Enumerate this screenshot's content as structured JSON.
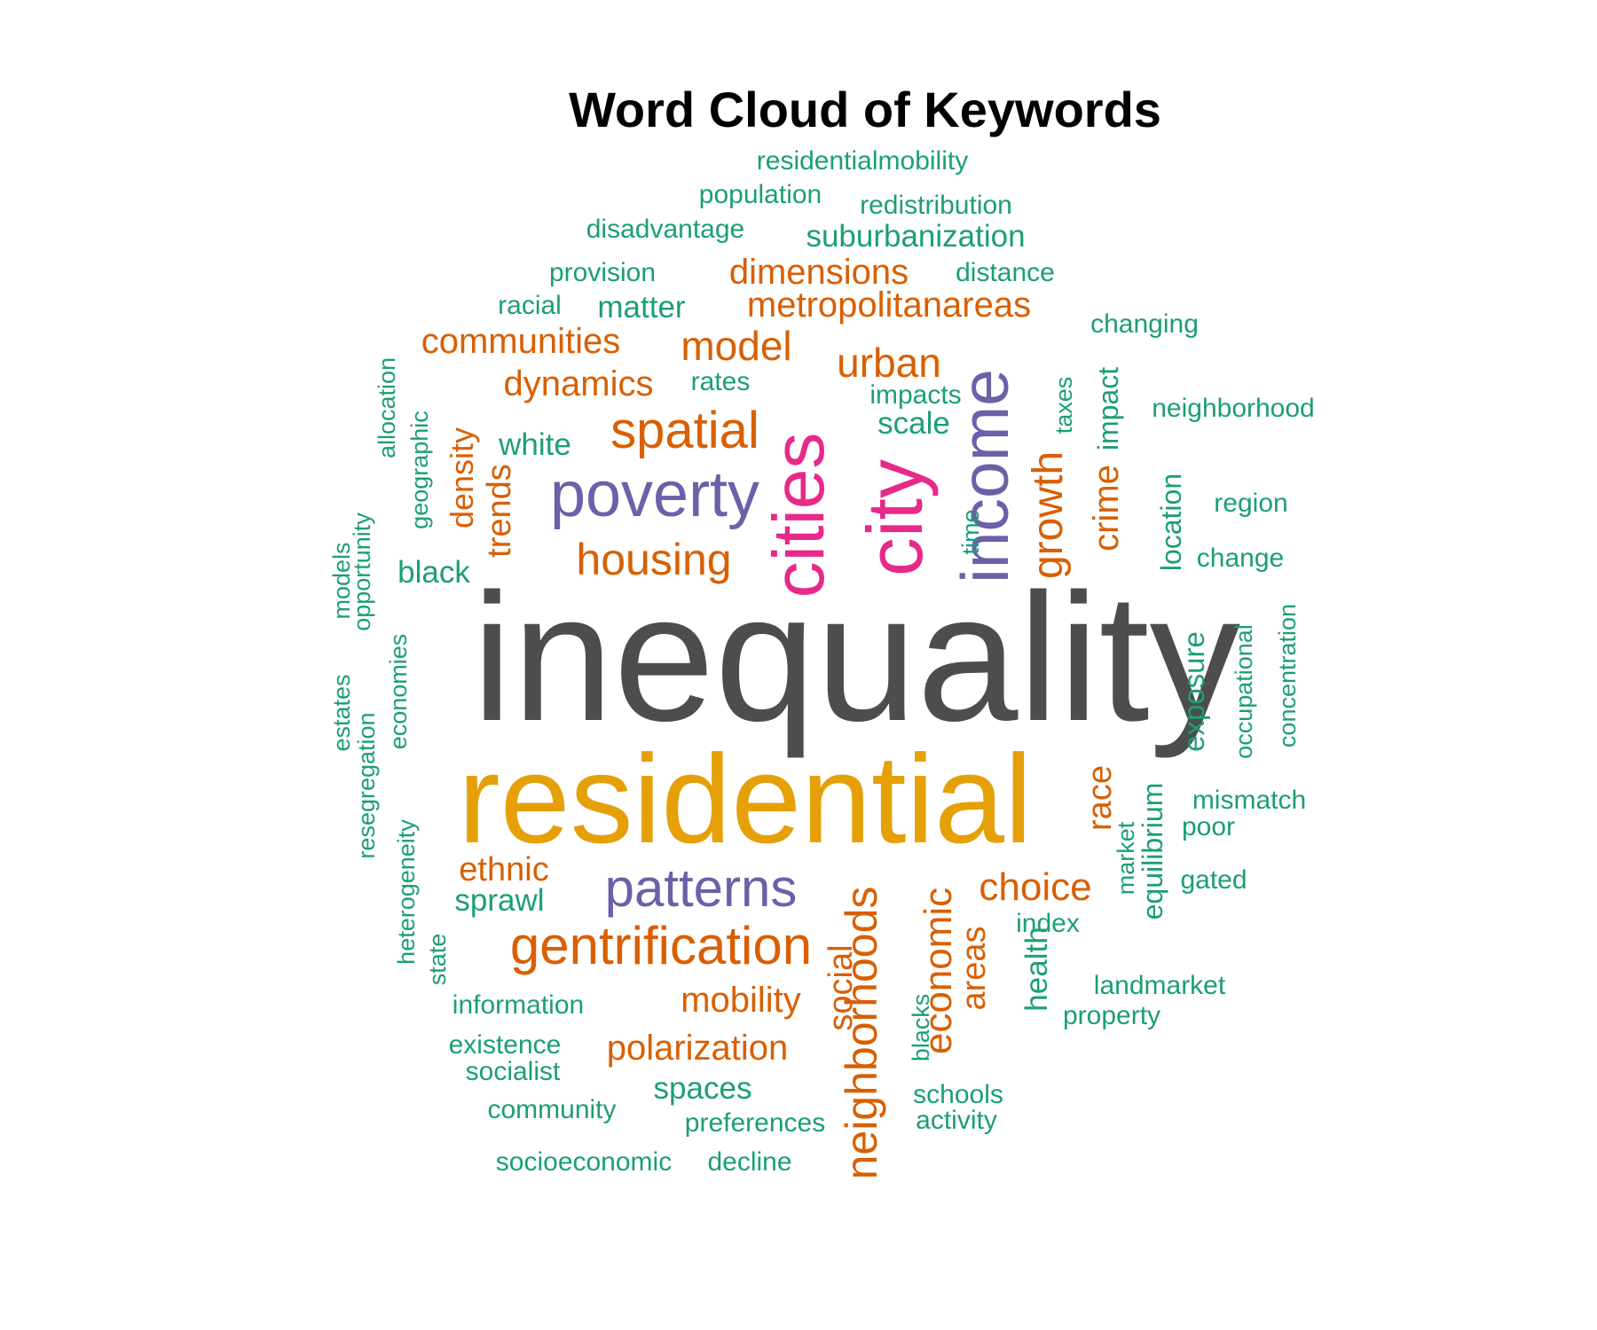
{
  "chart_data": {
    "type": "wordcloud",
    "title": "Word Cloud of Keywords",
    "colors": {
      "tier1": "#4d4d4d",
      "tier2": "#e6a007",
      "tier3": "#e7298a",
      "tier4": "#6d5fa8",
      "tier5": "#d95f02",
      "tier6": "#1b9e77"
    },
    "words": [
      {
        "text": "inequality",
        "tier": 1
      },
      {
        "text": "residential",
        "tier": 2
      },
      {
        "text": "cities",
        "tier": 3
      },
      {
        "text": "city",
        "tier": 3
      },
      {
        "text": "poverty",
        "tier": 4
      },
      {
        "text": "income",
        "tier": 4
      },
      {
        "text": "patterns",
        "tier": 4
      },
      {
        "text": "spatial",
        "tier": 5
      },
      {
        "text": "housing",
        "tier": 5
      },
      {
        "text": "gentrification",
        "tier": 5
      },
      {
        "text": "neighborhoods",
        "tier": 5
      },
      {
        "text": "economic",
        "tier": 5
      },
      {
        "text": "choice",
        "tier": 5
      },
      {
        "text": "growth",
        "tier": 5
      },
      {
        "text": "crime",
        "tier": 5
      },
      {
        "text": "urban",
        "tier": 5
      },
      {
        "text": "model",
        "tier": 5
      },
      {
        "text": "communities",
        "tier": 5
      },
      {
        "text": "dynamics",
        "tier": 5
      },
      {
        "text": "dimensions",
        "tier": 5
      },
      {
        "text": "metropolitanareas",
        "tier": 5
      },
      {
        "text": "mobility",
        "tier": 5
      },
      {
        "text": "polarization",
        "tier": 5
      },
      {
        "text": "ethnic",
        "tier": 5
      },
      {
        "text": "race",
        "tier": 5
      },
      {
        "text": "trends",
        "tier": 5
      },
      {
        "text": "density",
        "tier": 5
      },
      {
        "text": "areas",
        "tier": 5
      },
      {
        "text": "social",
        "tier": 5
      },
      {
        "text": "residentialmobility",
        "tier": 6
      },
      {
        "text": "population",
        "tier": 6
      },
      {
        "text": "redistribution",
        "tier": 6
      },
      {
        "text": "disadvantage",
        "tier": 6
      },
      {
        "text": "suburbanization",
        "tier": 6
      },
      {
        "text": "provision",
        "tier": 6
      },
      {
        "text": "distance",
        "tier": 6
      },
      {
        "text": "racial",
        "tier": 6
      },
      {
        "text": "matter",
        "tier": 6
      },
      {
        "text": "changing",
        "tier": 6
      },
      {
        "text": "rates",
        "tier": 6
      },
      {
        "text": "impacts",
        "tier": 6
      },
      {
        "text": "scale",
        "tier": 6
      },
      {
        "text": "neighborhood",
        "tier": 6
      },
      {
        "text": "white",
        "tier": 6
      },
      {
        "text": "region",
        "tier": 6
      },
      {
        "text": "change",
        "tier": 6
      },
      {
        "text": "black",
        "tier": 6
      },
      {
        "text": "allocation",
        "tier": 6
      },
      {
        "text": "geographic",
        "tier": 6
      },
      {
        "text": "opportunity",
        "tier": 6
      },
      {
        "text": "estates",
        "tier": 6
      },
      {
        "text": "models",
        "tier": 6
      },
      {
        "text": "economies",
        "tier": 6
      },
      {
        "text": "resegregation",
        "tier": 6
      },
      {
        "text": "heterogeneity",
        "tier": 6
      },
      {
        "text": "state",
        "tier": 6
      },
      {
        "text": "taxes",
        "tier": 6
      },
      {
        "text": "impact",
        "tier": 6
      },
      {
        "text": "location",
        "tier": 6
      },
      {
        "text": "time",
        "tier": 6
      },
      {
        "text": "exposure",
        "tier": 6
      },
      {
        "text": "occupational",
        "tier": 6
      },
      {
        "text": "concentration",
        "tier": 6
      },
      {
        "text": "mismatch",
        "tier": 6
      },
      {
        "text": "poor",
        "tier": 6
      },
      {
        "text": "gated",
        "tier": 6
      },
      {
        "text": "equilibrium",
        "tier": 6
      },
      {
        "text": "market",
        "tier": 6
      },
      {
        "text": "index",
        "tier": 6
      },
      {
        "text": "sprawl",
        "tier": 6
      },
      {
        "text": "landmarket",
        "tier": 6
      },
      {
        "text": "property",
        "tier": 6
      },
      {
        "text": "health",
        "tier": 6
      },
      {
        "text": "information",
        "tier": 6
      },
      {
        "text": "existence",
        "tier": 6
      },
      {
        "text": "socialist",
        "tier": 6
      },
      {
        "text": "spaces",
        "tier": 6
      },
      {
        "text": "community",
        "tier": 6
      },
      {
        "text": "preferences",
        "tier": 6
      },
      {
        "text": "blacks",
        "tier": 6
      },
      {
        "text": "schools",
        "tier": 6
      },
      {
        "text": "activity",
        "tier": 6
      },
      {
        "text": "socioeconomic",
        "tier": 6
      },
      {
        "text": "decline",
        "tier": 6
      }
    ]
  }
}
